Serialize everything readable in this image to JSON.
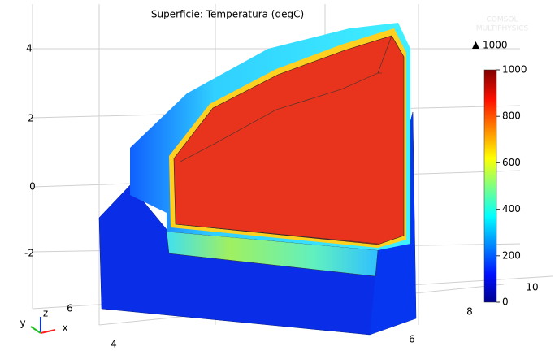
{
  "chart_data": {
    "type": "surface3d",
    "title": "Superficie: Temperatura (degC)",
    "logo": [
      "COMSOL",
      "MULTIPHYSICS"
    ],
    "colorbar": {
      "lim": [
        0,
        1000
      ],
      "ticks": [
        0,
        200,
        400,
        600,
        800,
        1000
      ],
      "max": 1000
    },
    "zticks": [
      -2,
      0,
      2,
      4
    ],
    "yticks": [
      4,
      6
    ],
    "xticks": [
      6,
      8,
      10
    ],
    "axis_labels": {
      "x": "x",
      "y": "y",
      "z": "z"
    }
  }
}
